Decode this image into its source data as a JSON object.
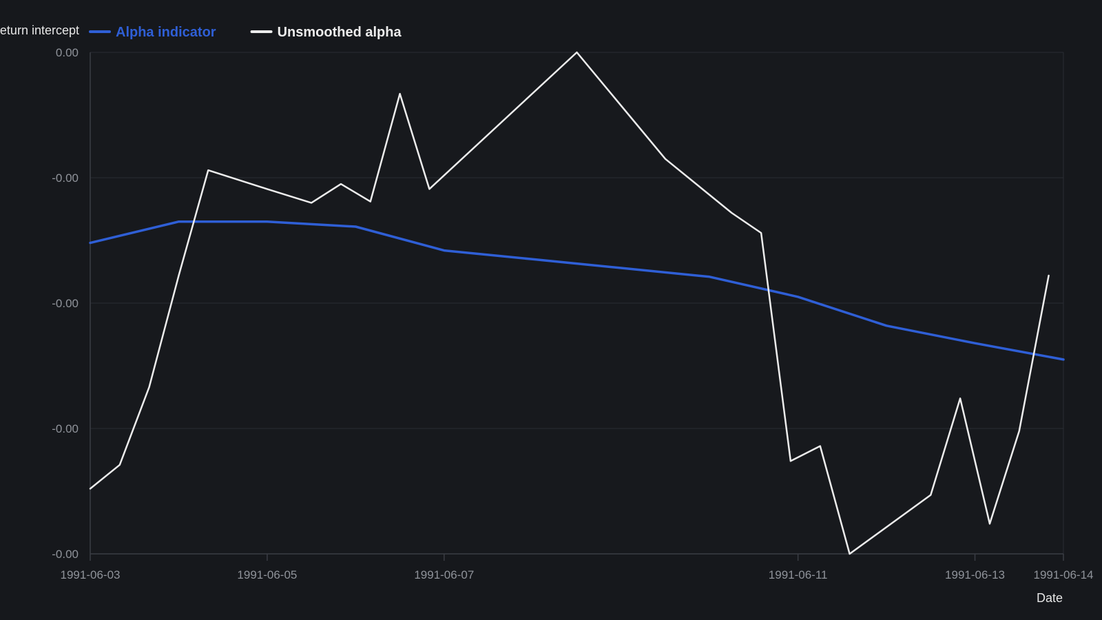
{
  "colors": {
    "background": "#16181c",
    "grid": "#2a2d33",
    "axis": "#3a3d44",
    "tick_text": "#8f939a",
    "title_text": "#e6e6e6"
  },
  "chart_data": {
    "type": "line",
    "title": "",
    "ylabel": "Return intercept",
    "xlabel": "Date",
    "grid": true,
    "legend_position": "top",
    "x_type": "date",
    "xlim": [
      "1991-06-03",
      "1991-06-14"
    ],
    "ylim": [
      -0.0004,
      0.0
    ],
    "x_ticks": [
      "1991-06-03",
      "1991-06-05",
      "1991-06-07",
      "1991-06-11",
      "1991-06-13",
      "1991-06-14"
    ],
    "x_tick_labels": [
      "1991-06-03",
      "1991-06-05",
      "1991-06-07",
      "1991-06-11",
      "1991-06-13",
      "1991-06-14"
    ],
    "y_ticks": [
      0.0,
      -0.0001,
      -0.0002,
      -0.0003,
      -0.0004
    ],
    "y_tick_labels": [
      "0.00",
      "-0.00",
      "-0.00",
      "-0.00",
      "-0.00"
    ],
    "series": [
      {
        "name": "Alpha indicator",
        "color": "#2f5fd6",
        "line_width": 3.5,
        "points": [
          {
            "x": "1991-06-03T00:00",
            "y": -0.000152
          },
          {
            "x": "1991-06-04T00:00",
            "y": -0.000135
          },
          {
            "x": "1991-06-05T00:00",
            "y": -0.000135
          },
          {
            "x": "1991-06-06T00:00",
            "y": -0.000139
          },
          {
            "x": "1991-06-07T00:00",
            "y": -0.000158
          },
          {
            "x": "1991-06-08T00:00",
            "y": -0.000165
          },
          {
            "x": "1991-06-09T00:00",
            "y": -0.000172
          },
          {
            "x": "1991-06-10T00:00",
            "y": -0.000179
          },
          {
            "x": "1991-06-11T00:00",
            "y": -0.000195
          },
          {
            "x": "1991-06-12T00:00",
            "y": -0.000218
          },
          {
            "x": "1991-06-13T00:00",
            "y": -0.000232
          },
          {
            "x": "1991-06-14T00:00",
            "y": -0.000245
          }
        ]
      },
      {
        "name": "Unsmoothed alpha",
        "color": "#ececec",
        "line_width": 2.5,
        "points": [
          {
            "x": "1991-06-03T00:00",
            "y": -0.000348
          },
          {
            "x": "1991-06-03T08:00",
            "y": -0.000329
          },
          {
            "x": "1991-06-03T16:00",
            "y": -0.000267
          },
          {
            "x": "1991-06-04T00:00",
            "y": -0.000178
          },
          {
            "x": "1991-06-04T08:00",
            "y": -9.4e-05
          },
          {
            "x": "1991-06-05T00:00",
            "y": -0.000109
          },
          {
            "x": "1991-06-05T12:00",
            "y": -0.00012
          },
          {
            "x": "1991-06-05T20:00",
            "y": -0.000105
          },
          {
            "x": "1991-06-06T04:00",
            "y": -0.000119
          },
          {
            "x": "1991-06-06T12:00",
            "y": -3.3e-05
          },
          {
            "x": "1991-06-06T20:00",
            "y": -0.000109
          },
          {
            "x": "1991-06-08T12:00",
            "y": 0.0
          },
          {
            "x": "1991-06-09T12:00",
            "y": -8.5e-05
          },
          {
            "x": "1991-06-10T06:00",
            "y": -0.000128
          },
          {
            "x": "1991-06-10T14:00",
            "y": -0.000144
          },
          {
            "x": "1991-06-10T22:00",
            "y": -0.000326
          },
          {
            "x": "1991-06-11T06:00",
            "y": -0.000314
          },
          {
            "x": "1991-06-11T14:00",
            "y": -0.0004
          },
          {
            "x": "1991-06-12T12:00",
            "y": -0.000353
          },
          {
            "x": "1991-06-12T20:00",
            "y": -0.000276
          },
          {
            "x": "1991-06-13T04:00",
            "y": -0.000376
          },
          {
            "x": "1991-06-13T12:00",
            "y": -0.000302
          },
          {
            "x": "1991-06-13T20:00",
            "y": -0.000178
          }
        ]
      }
    ]
  }
}
